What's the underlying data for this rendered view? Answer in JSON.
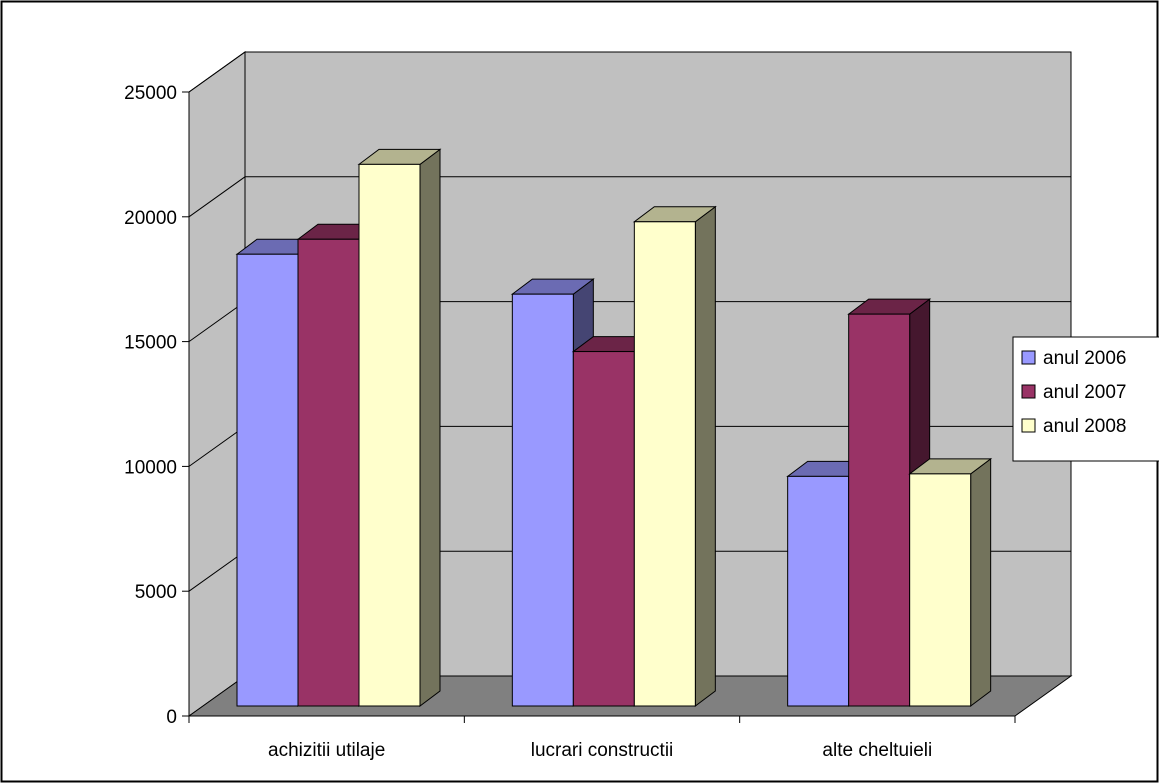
{
  "chart_data": {
    "type": "bar",
    "style": "3d-clustered-column",
    "title": "",
    "xlabel": "",
    "ylabel": "",
    "categories": [
      "achizitii utilaje",
      "lucrari constructii",
      "alte cheltuieli"
    ],
    "series": [
      {
        "name": "anul 2006",
        "values": [
          18100,
          16500,
          9200
        ],
        "color": "#9999ff"
      },
      {
        "name": "anul 2007",
        "values": [
          18700,
          14200,
          15700
        ],
        "color": "#993366"
      },
      {
        "name": "anul 2008",
        "values": [
          21700,
          19400,
          9300
        ],
        "color": "#ffffcc"
      }
    ],
    "ylim": [
      0,
      25000
    ],
    "yticks": [
      "0",
      "5000",
      "10000",
      "15000",
      "20000",
      "25000"
    ],
    "grid": true,
    "legend_position": "right",
    "colors": {
      "wall": "#c0c0c0",
      "floor": "#808080"
    }
  }
}
